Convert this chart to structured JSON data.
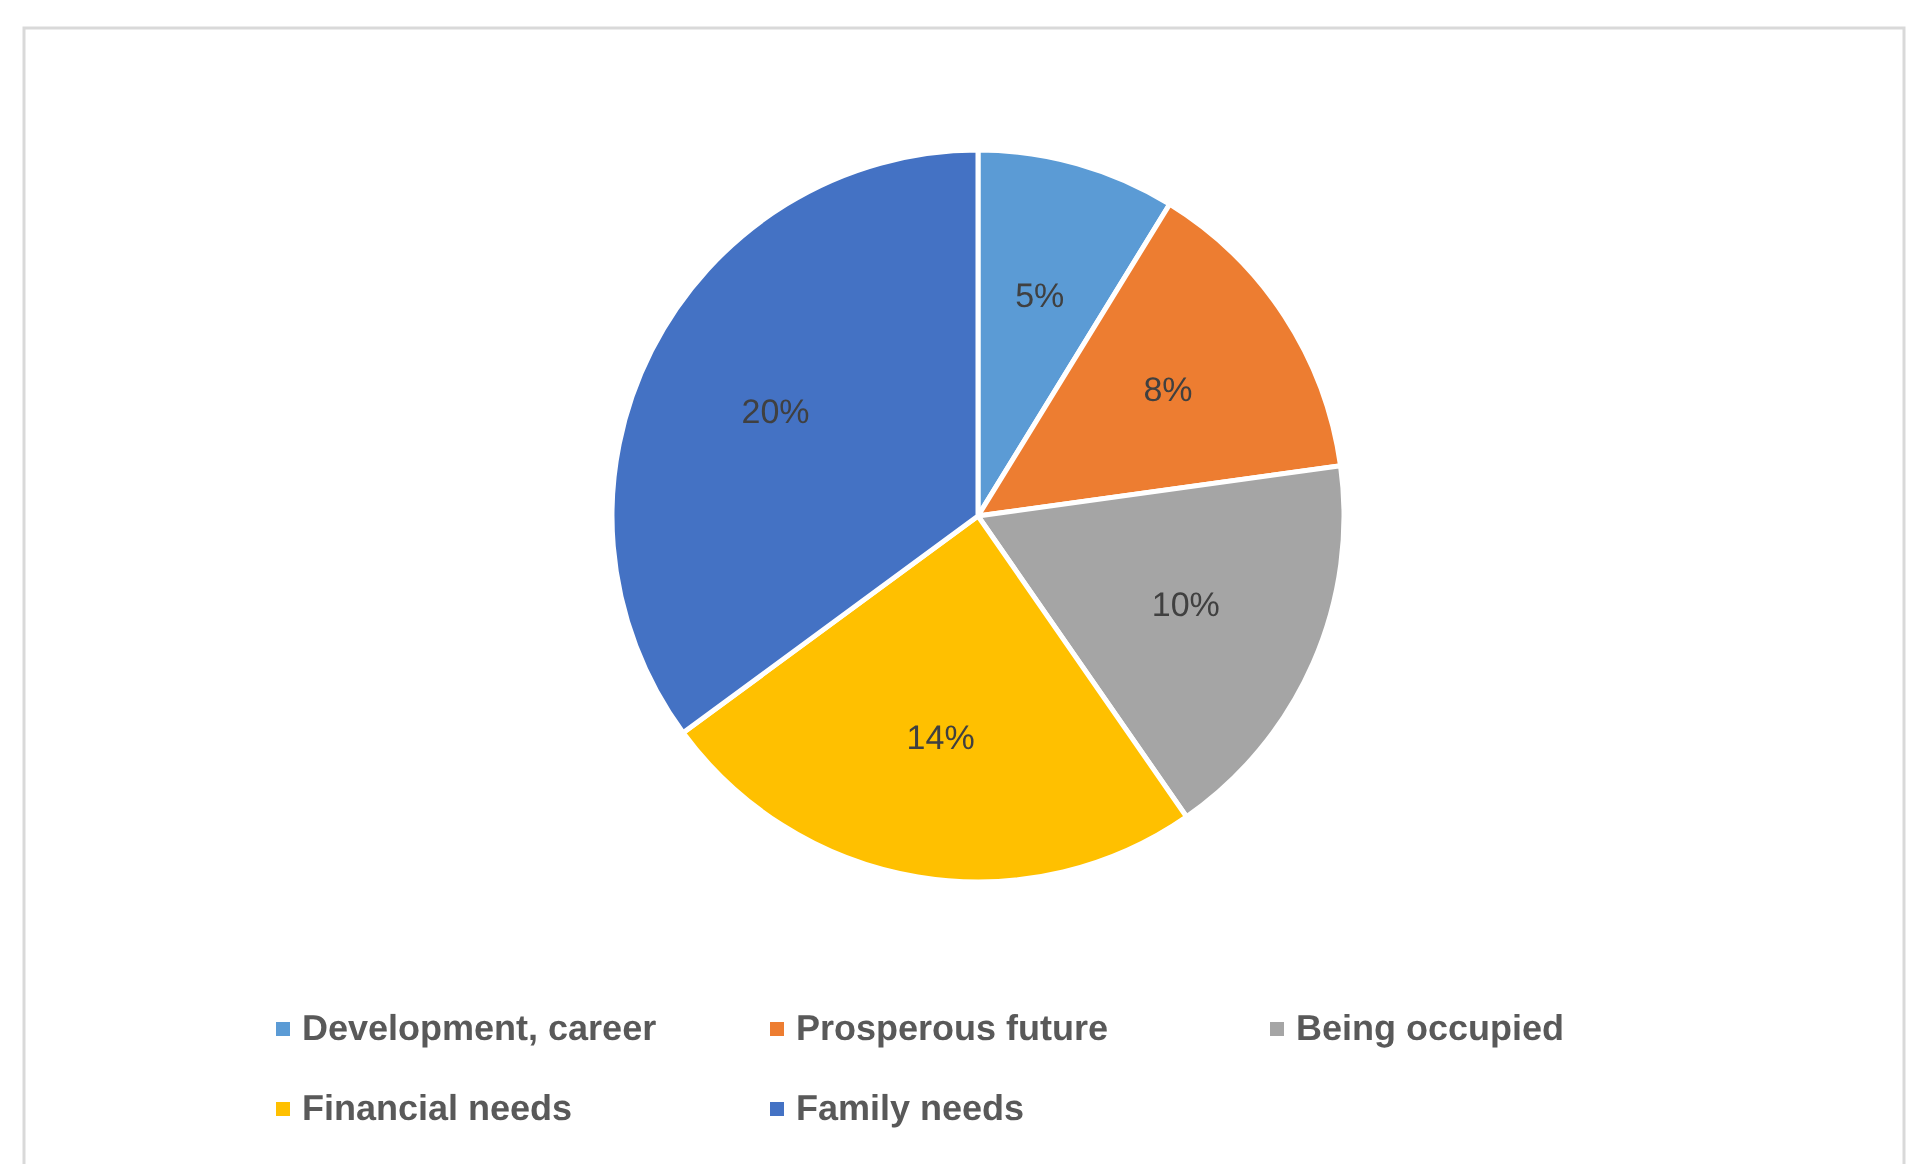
{
  "chart_data": {
    "type": "pie",
    "categories": [
      "Development, career",
      "Prosperous future",
      "Being occupied",
      "Financial needs",
      "Family needs"
    ],
    "values": [
      5,
      8,
      10,
      14,
      20
    ],
    "colors": [
      "#5b9bd5",
      "#ed7d31",
      "#a5a5a5",
      "#ffc000",
      "#4472c4"
    ],
    "value_labels": [
      "5%",
      "8%",
      "10%",
      "14%",
      "20%"
    ],
    "legend": "bottom"
  }
}
